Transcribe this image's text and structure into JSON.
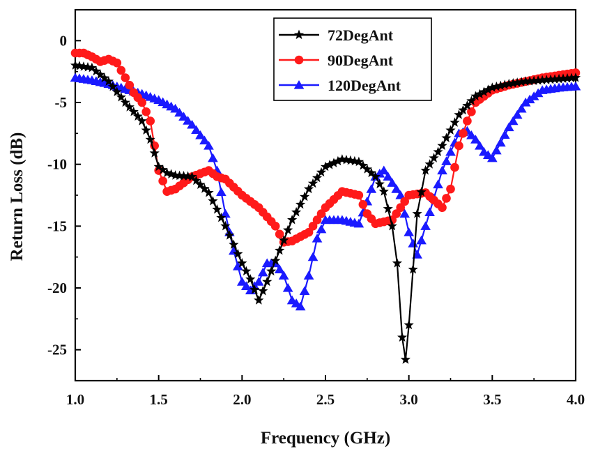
{
  "chart_data": {
    "type": "line",
    "title": "",
    "xlabel": "Frequency (GHz)",
    "ylabel": "Return Loss (dB)",
    "xlim": [
      1.0,
      4.0
    ],
    "ylim": [
      -27.5,
      2.5
    ],
    "xticks": [
      1.0,
      1.5,
      2.0,
      2.5,
      3.0,
      3.5,
      4.0
    ],
    "xtick_labels": [
      "1.0",
      "1.5",
      "2.0",
      "2.5",
      "3.0",
      "3.5",
      "4.0"
    ],
    "yticks": [
      0,
      -5,
      -10,
      -15,
      -20,
      -25
    ],
    "ytick_labels": [
      "0",
      "-5",
      "-10",
      "-15",
      "-20",
      "-25"
    ],
    "grid": false,
    "legend_position": "top-center",
    "series": [
      {
        "name": "72DegAnt",
        "color": "#000000",
        "marker": "star",
        "points": [
          [
            1.0,
            -2.0
          ],
          [
            1.1,
            -2.2
          ],
          [
            1.2,
            -3.3
          ],
          [
            1.3,
            -5.0
          ],
          [
            1.4,
            -6.5
          ],
          [
            1.45,
            -8.0
          ],
          [
            1.5,
            -10.2
          ],
          [
            1.55,
            -10.7
          ],
          [
            1.6,
            -10.9
          ],
          [
            1.7,
            -11.0
          ],
          [
            1.8,
            -12.3
          ],
          [
            1.9,
            -15.0
          ],
          [
            1.95,
            -16.5
          ],
          [
            2.0,
            -18.0
          ],
          [
            2.05,
            -19.3
          ],
          [
            2.1,
            -21.0
          ],
          [
            2.15,
            -19.5
          ],
          [
            2.2,
            -17.8
          ],
          [
            2.3,
            -14.5
          ],
          [
            2.4,
            -12.0
          ],
          [
            2.5,
            -10.2
          ],
          [
            2.6,
            -9.6
          ],
          [
            2.7,
            -9.8
          ],
          [
            2.8,
            -11.0
          ],
          [
            2.85,
            -12.2
          ],
          [
            2.9,
            -15.0
          ],
          [
            2.93,
            -18.0
          ],
          [
            2.96,
            -24.0
          ],
          [
            2.98,
            -25.8
          ],
          [
            3.0,
            -23.0
          ],
          [
            3.05,
            -14.0
          ],
          [
            3.1,
            -10.5
          ],
          [
            3.2,
            -8.5
          ],
          [
            3.3,
            -6.0
          ],
          [
            3.4,
            -4.5
          ],
          [
            3.5,
            -3.8
          ],
          [
            3.6,
            -3.5
          ],
          [
            3.7,
            -3.3
          ],
          [
            3.8,
            -3.2
          ],
          [
            3.9,
            -3.1
          ],
          [
            4.0,
            -3.0
          ]
        ]
      },
      {
        "name": "90DegAnt",
        "color": "#ff1a1a",
        "marker": "circle",
        "points": [
          [
            1.0,
            -1.0
          ],
          [
            1.05,
            -1.0
          ],
          [
            1.1,
            -1.3
          ],
          [
            1.15,
            -1.7
          ],
          [
            1.2,
            -1.5
          ],
          [
            1.25,
            -1.8
          ],
          [
            1.3,
            -3.0
          ],
          [
            1.35,
            -4.2
          ],
          [
            1.4,
            -5.0
          ],
          [
            1.45,
            -6.5
          ],
          [
            1.5,
            -10.5
          ],
          [
            1.55,
            -12.2
          ],
          [
            1.6,
            -12.0
          ],
          [
            1.7,
            -11.0
          ],
          [
            1.8,
            -10.5
          ],
          [
            1.85,
            -11.0
          ],
          [
            1.9,
            -11.2
          ],
          [
            2.0,
            -12.5
          ],
          [
            2.1,
            -13.5
          ],
          [
            2.2,
            -15.0
          ],
          [
            2.25,
            -16.3
          ],
          [
            2.3,
            -16.2
          ],
          [
            2.4,
            -15.5
          ],
          [
            2.5,
            -13.5
          ],
          [
            2.6,
            -12.2
          ],
          [
            2.7,
            -12.5
          ],
          [
            2.75,
            -14.0
          ],
          [
            2.8,
            -14.8
          ],
          [
            2.9,
            -14.5
          ],
          [
            3.0,
            -12.5
          ],
          [
            3.1,
            -12.3
          ],
          [
            3.2,
            -13.5
          ],
          [
            3.25,
            -12.0
          ],
          [
            3.3,
            -8.5
          ],
          [
            3.35,
            -6.5
          ],
          [
            3.4,
            -5.0
          ],
          [
            3.5,
            -4.0
          ],
          [
            3.6,
            -3.6
          ],
          [
            3.7,
            -3.3
          ],
          [
            3.8,
            -3.0
          ],
          [
            3.9,
            -2.8
          ],
          [
            4.0,
            -2.6
          ]
        ]
      },
      {
        "name": "120DegAnt",
        "color": "#1a1aff",
        "marker": "triangle",
        "points": [
          [
            1.0,
            -3.0
          ],
          [
            1.1,
            -3.2
          ],
          [
            1.2,
            -3.5
          ],
          [
            1.3,
            -3.9
          ],
          [
            1.4,
            -4.3
          ],
          [
            1.5,
            -4.8
          ],
          [
            1.6,
            -5.5
          ],
          [
            1.7,
            -6.8
          ],
          [
            1.8,
            -8.5
          ],
          [
            1.85,
            -10.5
          ],
          [
            1.9,
            -14.0
          ],
          [
            1.95,
            -17.0
          ],
          [
            2.0,
            -19.5
          ],
          [
            2.05,
            -20.2
          ],
          [
            2.1,
            -19.5
          ],
          [
            2.15,
            -18.0
          ],
          [
            2.2,
            -18.0
          ],
          [
            2.25,
            -19.0
          ],
          [
            2.3,
            -21.0
          ],
          [
            2.35,
            -21.5
          ],
          [
            2.4,
            -19.0
          ],
          [
            2.45,
            -16.0
          ],
          [
            2.5,
            -14.5
          ],
          [
            2.6,
            -14.5
          ],
          [
            2.7,
            -14.8
          ],
          [
            2.75,
            -13.0
          ],
          [
            2.8,
            -11.0
          ],
          [
            2.85,
            -10.5
          ],
          [
            2.9,
            -11.5
          ],
          [
            2.95,
            -12.5
          ],
          [
            3.0,
            -15.5
          ],
          [
            3.05,
            -17.3
          ],
          [
            3.1,
            -15.0
          ],
          [
            3.2,
            -10.5
          ],
          [
            3.3,
            -7.5
          ],
          [
            3.35,
            -7.3
          ],
          [
            3.4,
            -8.0
          ],
          [
            3.45,
            -9.0
          ],
          [
            3.5,
            -9.5
          ],
          [
            3.6,
            -7.0
          ],
          [
            3.7,
            -5.0
          ],
          [
            3.8,
            -4.0
          ],
          [
            3.9,
            -3.8
          ],
          [
            4.0,
            -3.7
          ]
        ]
      }
    ]
  }
}
